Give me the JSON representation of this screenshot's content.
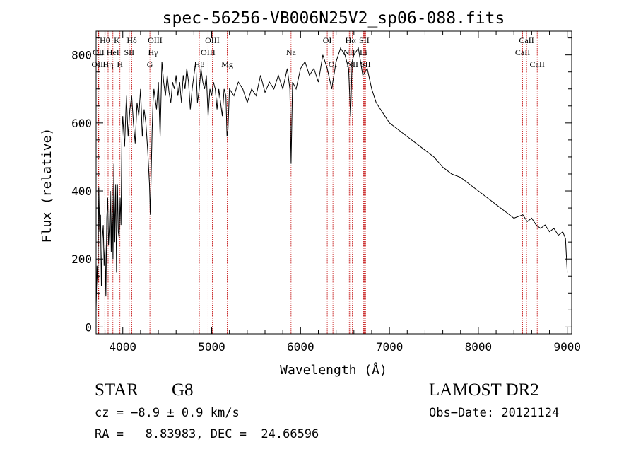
{
  "chart_data": {
    "type": "line",
    "title": "spec-56256-VB006N25V2_sp06-088.fits",
    "xlabel": "Wavelength (Å)",
    "ylabel": "Flux (relative)",
    "xlim": [
      3700,
      9050
    ],
    "ylim": [
      -20,
      870
    ],
    "xticks": [
      4000,
      5000,
      6000,
      7000,
      8000,
      9000
    ],
    "yticks": [
      0,
      200,
      400,
      600,
      800
    ],
    "grid": false,
    "line_color": "#000000",
    "marker_color": "#c00000",
    "series": [
      {
        "x": [
          3700,
          3710,
          3720,
          3730,
          3740,
          3750,
          3760,
          3770,
          3780,
          3790,
          3800,
          3810,
          3820,
          3830,
          3840,
          3850,
          3860,
          3870,
          3880,
          3890,
          3900,
          3910,
          3920,
          3930,
          3940,
          3950,
          3960,
          3970,
          3980,
          3990,
          4000,
          4020,
          4040,
          4060,
          4080,
          4100,
          4120,
          4140,
          4160,
          4180,
          4200,
          4220,
          4240,
          4260,
          4280,
          4300,
          4310,
          4320,
          4330,
          4340,
          4350,
          4380,
          4400,
          4420,
          4440,
          4460,
          4480,
          4500,
          4520,
          4540,
          4560,
          4580,
          4600,
          4620,
          4640,
          4660,
          4680,
          4700,
          4720,
          4740,
          4760,
          4780,
          4800,
          4820,
          4840,
          4861,
          4880,
          4900,
          4920,
          4940,
          4960,
          4980,
          5000,
          5020,
          5040,
          5060,
          5080,
          5100,
          5120,
          5140,
          5160,
          5172,
          5183,
          5200,
          5250,
          5300,
          5350,
          5400,
          5450,
          5500,
          5550,
          5600,
          5650,
          5700,
          5750,
          5800,
          5850,
          5880,
          5893,
          5910,
          5950,
          6000,
          6050,
          6100,
          6150,
          6200,
          6250,
          6300,
          6350,
          6400,
          6450,
          6500,
          6540,
          6563,
          6580,
          6600,
          6650,
          6700,
          6750,
          6800,
          6850,
          6900,
          6950,
          7000,
          7100,
          7200,
          7300,
          7400,
          7500,
          7600,
          7700,
          7800,
          7900,
          8000,
          8100,
          8200,
          8300,
          8400,
          8500,
          8550,
          8600,
          8650,
          8700,
          8750,
          8800,
          8850,
          8900,
          8950,
          8980,
          9000
        ],
        "values": [
          50,
          180,
          120,
          410,
          280,
          330,
          120,
          260,
          300,
          180,
          240,
          90,
          320,
          380,
          240,
          300,
          400,
          220,
          420,
          200,
          480,
          250,
          420,
          160,
          420,
          280,
          260,
          380,
          300,
          560,
          620,
          530,
          680,
          560,
          640,
          680,
          600,
          540,
          660,
          620,
          700,
          560,
          640,
          600,
          520,
          420,
          330,
          460,
          580,
          660,
          700,
          640,
          720,
          560,
          780,
          720,
          680,
          740,
          690,
          660,
          720,
          700,
          740,
          680,
          720,
          660,
          740,
          700,
          760,
          720,
          640,
          700,
          740,
          780,
          660,
          700,
          760,
          720,
          700,
          740,
          620,
          700,
          680,
          720,
          700,
          640,
          700,
          660,
          620,
          700,
          680,
          560,
          580,
          700,
          680,
          720,
          700,
          660,
          700,
          680,
          740,
          690,
          720,
          700,
          740,
          700,
          760,
          700,
          480,
          720,
          700,
          760,
          780,
          740,
          760,
          720,
          800,
          760,
          700,
          780,
          820,
          800,
          760,
          620,
          780,
          800,
          820,
          740,
          760,
          700,
          660,
          640,
          620,
          600,
          580,
          560,
          540,
          520,
          500,
          470,
          450,
          440,
          420,
          400,
          380,
          360,
          340,
          320,
          330,
          310,
          320,
          300,
          290,
          300,
          280,
          290,
          270,
          280,
          260,
          160
        ]
      }
    ],
    "lines": [
      {
        "name": "Hθ",
        "wave": 3798,
        "row": 1
      },
      {
        "name": "OII",
        "wave": 3727,
        "row": 2
      },
      {
        "name": "OIII",
        "wave": 3730,
        "row": 3
      },
      {
        "name": "K",
        "wave": 3934,
        "row": 1
      },
      {
        "name": "HeI",
        "wave": 3889,
        "row": 2
      },
      {
        "name": "Hη",
        "wave": 3835,
        "row": 3
      },
      {
        "name": "Hδ",
        "wave": 4102,
        "row": 1
      },
      {
        "name": "SII",
        "wave": 4072,
        "row": 2
      },
      {
        "name": "H",
        "wave": 3968,
        "row": 3
      },
      {
        "name": "OIII",
        "wave": 4363,
        "row": 1
      },
      {
        "name": "Hγ",
        "wave": 4340,
        "row": 2
      },
      {
        "name": "G",
        "wave": 4305,
        "row": 3
      },
      {
        "name": "OIII",
        "wave": 5007,
        "row": 1
      },
      {
        "name": "OIII",
        "wave": 4959,
        "row": 2
      },
      {
        "name": "Hβ",
        "wave": 4861,
        "row": 3
      },
      {
        "name": "Mg",
        "wave": 5175,
        "row": 3
      },
      {
        "name": "Na",
        "wave": 5893,
        "row": 2
      },
      {
        "name": "OI",
        "wave": 6300,
        "row": 1
      },
      {
        "name": "OI",
        "wave": 6364,
        "row": 3
      },
      {
        "name": "Hα",
        "wave": 6563,
        "row": 1
      },
      {
        "name": "NII",
        "wave": 6548,
        "row": 2
      },
      {
        "name": "NII",
        "wave": 6583,
        "row": 3
      },
      {
        "name": "SII",
        "wave": 6716,
        "row": 1
      },
      {
        "name": "Li",
        "wave": 6708,
        "row": 2
      },
      {
        "name": "SII",
        "wave": 6731,
        "row": 3
      },
      {
        "name": "CaII",
        "wave": 8542,
        "row": 1
      },
      {
        "name": "CaII",
        "wave": 8498,
        "row": 2
      },
      {
        "name": "CaII",
        "wave": 8662,
        "row": 3
      }
    ]
  },
  "info": {
    "class": "STAR",
    "subclass": "G8",
    "survey": "LAMOST DR2",
    "cz": "cz = −8.9 ± 0.9 km/s",
    "obs_date": "Obs−Date: 20121124",
    "coords": "RA =   8.83983, DEC =  24.66596"
  }
}
